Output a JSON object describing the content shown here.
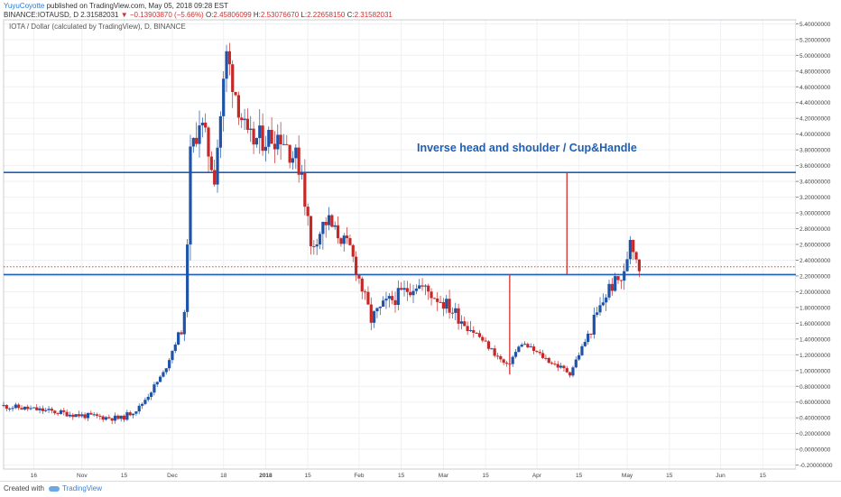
{
  "header": {
    "user": "YuyuCoyotte",
    "published": "published on TradingView.com, May 05, 2018 09:28 EST",
    "symbol": "BINANCE:IOTAUSD, D",
    "last": "2.31582031",
    "change": "−0.13903870 (−5.66%)",
    "o_label": "O:",
    "o": "2.45806099",
    "h_label": "H:",
    "h": "2.53076670",
    "l_label": "L:",
    "l": "2.22658150",
    "c_label": "C:",
    "c": "2.31582031"
  },
  "footer": {
    "created_with": "Created with",
    "brand": "TradingView"
  },
  "colors": {
    "up": "#1e53a8",
    "down": "#c62828",
    "level": "#1e5fb4",
    "annotation": "#d32f2f",
    "grid": "#eef0f3"
  },
  "chart_data": {
    "type": "candlestick",
    "instrument": "IOTA / Dollar (calculated by TradingView), D, BINANCE",
    "annotation": "Inverse head and shoulder / Cup&Handle",
    "ylim": [
      -0.25,
      5.45
    ],
    "y_ticks": [
      "5.40000000",
      "5.20000000",
      "5.00000000",
      "4.80000000",
      "4.60000000",
      "4.40000000",
      "4.20000000",
      "4.00000000",
      "3.80000000",
      "3.60000000",
      "3.40000000",
      "3.20000000",
      "3.00000000",
      "2.80000000",
      "2.60000000",
      "2.40000000",
      "2.20000000",
      "2.00000000",
      "1.80000000",
      "1.60000000",
      "1.40000000",
      "1.20000000",
      "1.00000000",
      "0.80000000",
      "0.60000000",
      "0.40000000",
      "0.20000000",
      "0.00000000",
      "-0.20000000"
    ],
    "x_ticks": [
      {
        "label": "16",
        "date": "2017-10-16"
      },
      {
        "label": "Nov",
        "date": "2017-11-01"
      },
      {
        "label": "15",
        "date": "2017-11-15"
      },
      {
        "label": "Dec",
        "date": "2017-12-01"
      },
      {
        "label": "18",
        "date": "2017-12-18"
      },
      {
        "label": "2018",
        "date": "2018-01-01"
      },
      {
        "label": "15",
        "date": "2018-01-15"
      },
      {
        "label": "Feb",
        "date": "2018-02-01"
      },
      {
        "label": "15",
        "date": "2018-02-15"
      },
      {
        "label": "Mar",
        "date": "2018-03-01"
      },
      {
        "label": "15",
        "date": "2018-03-15"
      },
      {
        "label": "Apr",
        "date": "2018-04-01"
      },
      {
        "label": "15",
        "date": "2018-04-15"
      },
      {
        "label": "May",
        "date": "2018-05-01"
      },
      {
        "label": "15",
        "date": "2018-05-15"
      },
      {
        "label": "Jun",
        "date": "2018-06-01"
      },
      {
        "label": "15",
        "date": "2018-06-15"
      }
    ],
    "levels": [
      {
        "value": 3.51327159,
        "label": "3.51327159"
      },
      {
        "value": 2.216867,
        "label": "2.21686700"
      }
    ],
    "last_price": {
      "value": 2.31582031,
      "label": "2.31582031"
    },
    "vertical_markers": [
      {
        "date": "2018-03-23",
        "from": 0.95,
        "to": 2.22
      },
      {
        "date": "2018-04-11",
        "from": 2.22,
        "to": 3.51
      }
    ],
    "close_path": [
      {
        "date": "2017-10-06",
        "close": 0.55
      },
      {
        "date": "2017-10-20",
        "close": 0.49
      },
      {
        "date": "2017-11-01",
        "close": 0.43
      },
      {
        "date": "2017-11-14",
        "close": 0.39
      },
      {
        "date": "2017-11-20",
        "close": 0.53
      },
      {
        "date": "2017-11-28",
        "close": 0.96
      },
      {
        "date": "2017-12-05",
        "close": 1.65
      },
      {
        "date": "2017-12-07",
        "close": 3.7
      },
      {
        "date": "2017-12-10",
        "close": 4.2
      },
      {
        "date": "2017-12-15",
        "close": 3.5
      },
      {
        "date": "2017-12-19",
        "close": 5.0
      },
      {
        "date": "2017-12-26",
        "close": 3.9
      },
      {
        "date": "2018-01-06",
        "close": 4.0
      },
      {
        "date": "2018-01-13",
        "close": 3.55
      },
      {
        "date": "2018-01-16",
        "close": 2.55
      },
      {
        "date": "2018-01-21",
        "close": 2.9
      },
      {
        "date": "2018-01-29",
        "close": 2.55
      },
      {
        "date": "2018-02-05",
        "close": 1.65
      },
      {
        "date": "2018-02-10",
        "close": 1.85
      },
      {
        "date": "2018-02-20",
        "close": 2.1
      },
      {
        "date": "2018-02-28",
        "close": 1.9
      },
      {
        "date": "2018-03-10",
        "close": 1.55
      },
      {
        "date": "2018-03-22",
        "close": 1.05
      },
      {
        "date": "2018-03-27",
        "close": 1.35
      },
      {
        "date": "2018-04-06",
        "close": 1.1
      },
      {
        "date": "2018-04-12",
        "close": 0.97
      },
      {
        "date": "2018-04-18",
        "close": 1.45
      },
      {
        "date": "2018-04-25",
        "close": 2.05
      },
      {
        "date": "2018-04-30",
        "close": 2.2
      },
      {
        "date": "2018-05-02",
        "close": 2.7
      },
      {
        "date": "2018-05-05",
        "close": 2.32
      }
    ]
  }
}
